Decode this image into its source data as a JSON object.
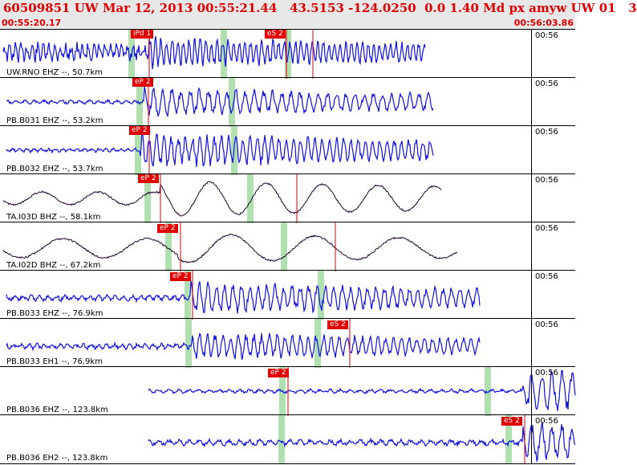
{
  "header": {
    "title": "60509851 UW Mar 12, 2013 00:55:21.44   43.5153 -124.0250  0.0 1.40 Md px amyw UW 01   3",
    "time_start": "00:55:20.17",
    "time_end": "00:56:03.86"
  },
  "colors": {
    "header_bg": "#e8e8e8",
    "header_text": "#e00000",
    "trace_vertical": "#1010e0",
    "trace_broadband": "#200030",
    "pick_marker": "#e00000",
    "phase_window": "#b0e0b0"
  },
  "channels": [
    {
      "label": "UW.RNO EHZ --, 50.7km",
      "clock": "00:56",
      "picks": [
        "iPd 1",
        "eS 2"
      ],
      "kind": "short-period"
    },
    {
      "label": "PB.B031 EHZ --, 53.2km",
      "clock": "00:56",
      "picks": [
        "eP 2"
      ],
      "kind": "short-period"
    },
    {
      "label": "PB.B032 EHZ --, 53.7km",
      "clock": "00:56",
      "picks": [
        "eP 2"
      ],
      "kind": "short-period"
    },
    {
      "label": "TA.I03D BHZ --, 58.1km",
      "clock": "00:56",
      "picks": [
        "eP 2"
      ],
      "kind": "broadband"
    },
    {
      "label": "TA.I02D BHZ --, 67.2km",
      "clock": "00:56",
      "picks": [
        "eP 2"
      ],
      "kind": "broadband"
    },
    {
      "label": "PB.B033 EHZ --, 76.9km",
      "clock": "00:56",
      "picks": [
        "eP 2"
      ],
      "kind": "short-period"
    },
    {
      "label": "PB.B033 EH1 --, 76.9km",
      "clock": "00:56",
      "picks": [
        "eS 2"
      ],
      "kind": "short-period"
    },
    {
      "label": "PB.B036 EHZ --, 123.8km",
      "clock": "00:56",
      "picks": [
        "eP 2"
      ],
      "kind": "short-period"
    },
    {
      "label": "PB.B036 EH2 --, 123.8km",
      "clock": "00:56",
      "picks": [
        "eS 2"
      ],
      "kind": "short-period"
    }
  ]
}
